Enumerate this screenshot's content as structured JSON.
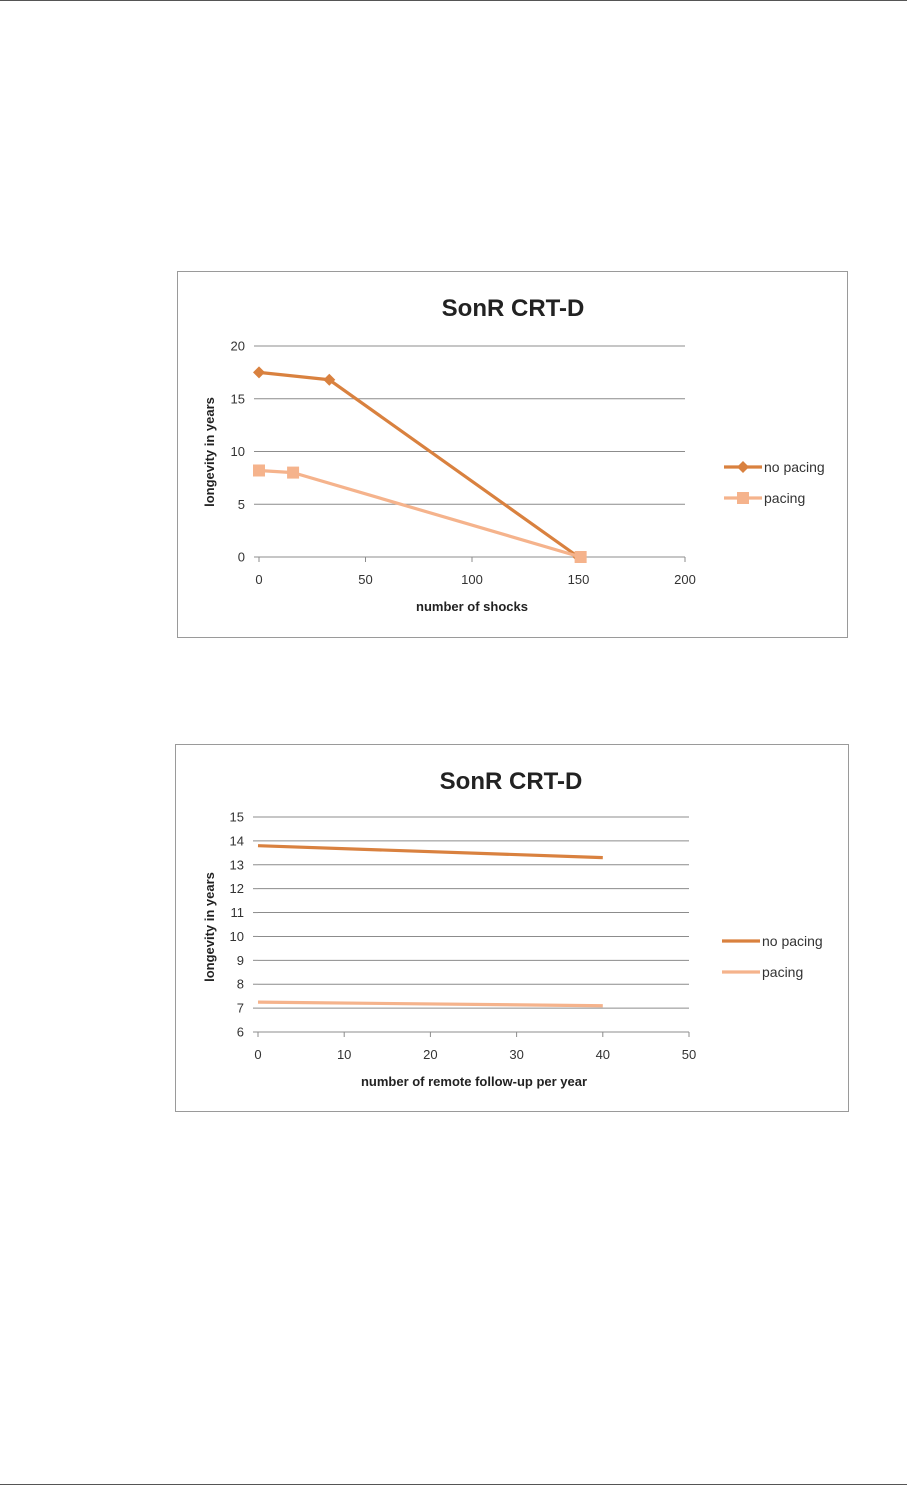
{
  "chart_data": [
    {
      "type": "line",
      "title": "SonR CRT-D",
      "xlabel": "number of shocks",
      "ylabel": "longevity in years",
      "xlim": [
        0,
        200
      ],
      "ylim": [
        0,
        20
      ],
      "xticks": [
        "0",
        "50",
        "100",
        "150",
        "200"
      ],
      "yticks": [
        "0",
        "5",
        "10",
        "15",
        "20"
      ],
      "grid": "horizontal",
      "legend_position": "right",
      "series": [
        {
          "name": "no pacing",
          "color": "#d9813f",
          "marker": "diamond",
          "points": [
            {
              "x": 0,
              "y": 17.5
            },
            {
              "x": 33,
              "y": 16.8
            },
            {
              "x": 150,
              "y": 0
            }
          ]
        },
        {
          "name": "pacing",
          "color": "#f5b38c",
          "marker": "square",
          "points": [
            {
              "x": 0,
              "y": 8.2
            },
            {
              "x": 16,
              "y": 8.0
            },
            {
              "x": 151,
              "y": 0
            }
          ]
        }
      ]
    },
    {
      "type": "line",
      "title": "SonR CRT-D",
      "xlabel": "number of remote follow-up per year",
      "ylabel": "longevity in years",
      "xlim": [
        0,
        50
      ],
      "ylim": [
        6,
        15
      ],
      "xticks": [
        "0",
        "10",
        "20",
        "30",
        "40",
        "50"
      ],
      "yticks": [
        "6",
        "7",
        "8",
        "9",
        "10",
        "11",
        "12",
        "13",
        "14",
        "15"
      ],
      "grid": "horizontal",
      "legend_position": "right",
      "series": [
        {
          "name": "no pacing",
          "color": "#d9813f",
          "marker": "none",
          "points": [
            {
              "x": 0,
              "y": 13.8
            },
            {
              "x": 40,
              "y": 13.3
            }
          ]
        },
        {
          "name": "pacing",
          "color": "#f5b38c",
          "marker": "none",
          "points": [
            {
              "x": 0,
              "y": 7.25
            },
            {
              "x": 40,
              "y": 7.1
            }
          ]
        }
      ]
    }
  ]
}
